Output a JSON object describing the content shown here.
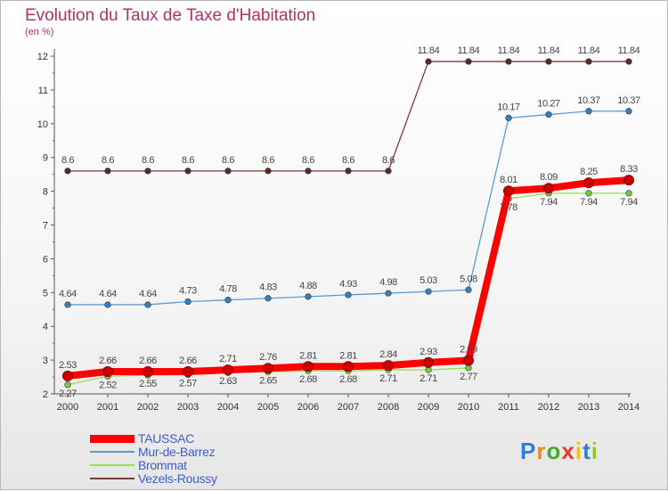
{
  "chart_data": {
    "type": "line",
    "title": "Evolution du Taux de Taxe d'Habitation",
    "subtitle": "(en %)",
    "x": [
      "2000",
      "2001",
      "2002",
      "2003",
      "2004",
      "2005",
      "2006",
      "2007",
      "2008",
      "2009",
      "2010",
      "2011",
      "2012",
      "2013",
      "2014"
    ],
    "ylim": [
      2,
      12
    ],
    "yticks": [
      "2",
      "3",
      "4",
      "5",
      "6",
      "7",
      "8",
      "9",
      "10",
      "11",
      "12"
    ],
    "grid": false,
    "legend_position": "bottom-left",
    "series": [
      {
        "name": "TAUSSAC",
        "color": "#ff0000",
        "marker_color": "#cc0000",
        "values": [
          2.53,
          2.66,
          2.66,
          2.66,
          2.71,
          2.76,
          2.81,
          2.81,
          2.84,
          2.93,
          2.99,
          8.01,
          8.09,
          8.25,
          8.33
        ],
        "labels": [
          "2.53",
          "2.66",
          "2.66",
          "2.66",
          "2.71",
          "2.76",
          "2.81",
          "2.81",
          "2.84",
          "2.93",
          "2.99",
          "8.01",
          "8.09",
          "8.25",
          "8.33"
        ]
      },
      {
        "name": "Mur-de-Barrez",
        "color": "#5b9bd5",
        "marker_color": "#3a7ec2",
        "values": [
          4.64,
          4.64,
          4.64,
          4.73,
          4.78,
          4.83,
          4.88,
          4.93,
          4.98,
          5.03,
          5.08,
          10.17,
          10.27,
          10.37,
          10.37
        ],
        "labels": [
          "4.64",
          "4.64",
          "4.64",
          "4.73",
          "4.78",
          "4.83",
          "4.88",
          "4.93",
          "4.98",
          "5.03",
          "5.08",
          "10.17",
          "10.27",
          "10.37",
          "10.37"
        ]
      },
      {
        "name": "Brommat",
        "color": "#99dd55",
        "marker_color": "#77cc33",
        "values": [
          2.27,
          2.52,
          2.55,
          2.57,
          2.63,
          2.65,
          2.68,
          2.68,
          2.71,
          2.71,
          2.77,
          7.78,
          7.94,
          7.94,
          7.94
        ],
        "labels": [
          "2.27",
          "2.52",
          "2.55",
          "2.57",
          "2.63",
          "2.65",
          "2.68",
          "2.68",
          "2.71",
          "2.71",
          "2.77",
          "7.78",
          "7.94",
          "7.94",
          "7.94"
        ]
      },
      {
        "name": "Vezels-Roussy",
        "color": "#7a3b3b",
        "marker_color": "#5a2a2a",
        "values": [
          8.6,
          8.6,
          8.6,
          8.6,
          8.6,
          8.6,
          8.6,
          8.6,
          8.6,
          11.84,
          11.84,
          11.84,
          11.84,
          11.84,
          11.84
        ],
        "labels": [
          "8.6",
          "8.6",
          "8.6",
          "8.6",
          "8.6",
          "8.6",
          "8.6",
          "8.6",
          "8.6",
          "11.84",
          "11.84",
          "11.84",
          "11.84",
          "11.84",
          "11.84"
        ]
      }
    ]
  },
  "logo": {
    "letters": [
      "P",
      "r",
      "o",
      "x",
      "i",
      "t",
      "i"
    ],
    "colors": [
      "#2f7fd1",
      "#f08a1c",
      "#44a832",
      "#e23b2e",
      "#f2c214",
      "#2f7fd1",
      "#8fc93a"
    ]
  }
}
